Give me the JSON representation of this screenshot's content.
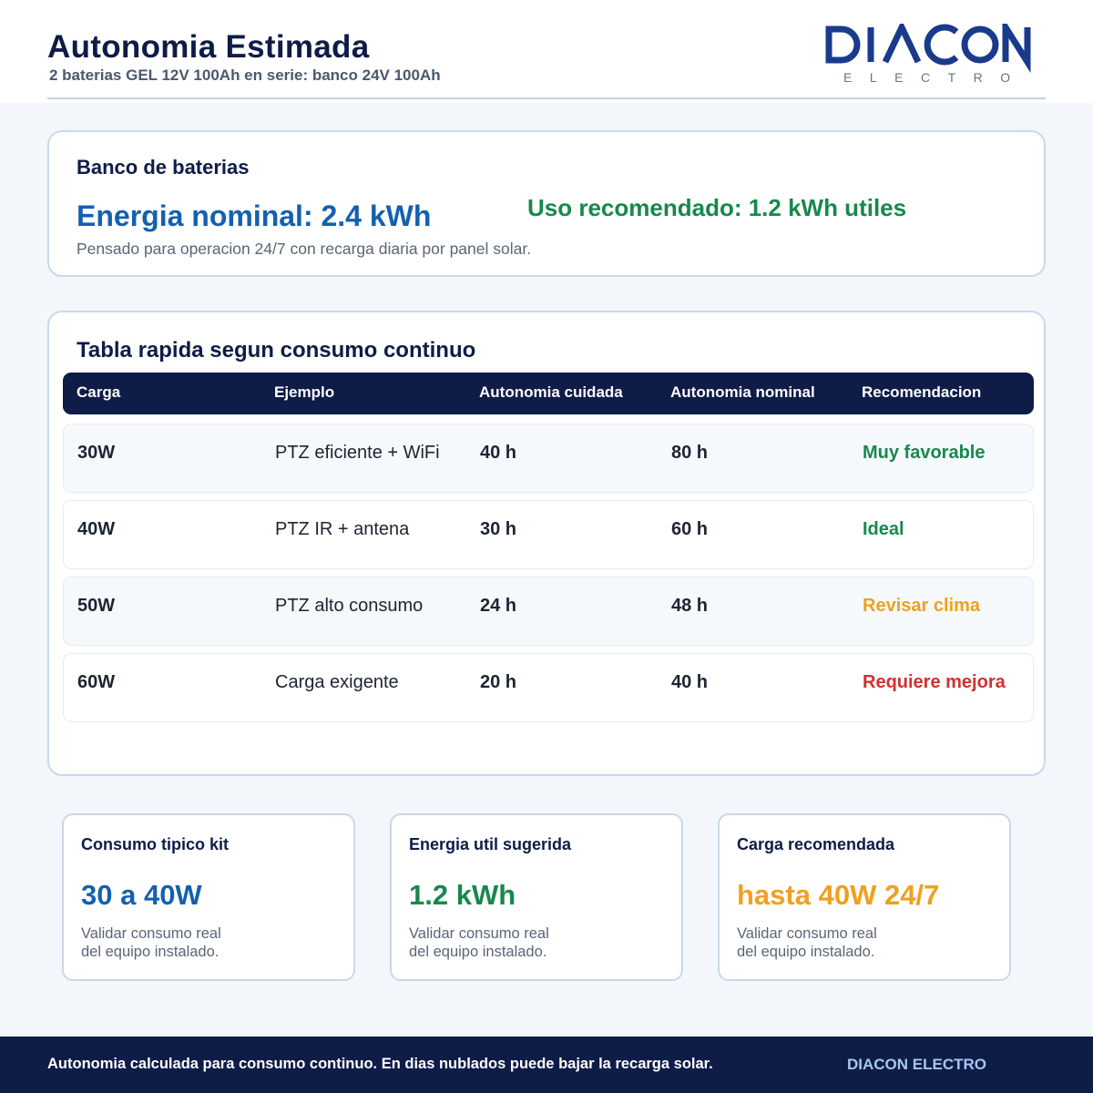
{
  "header": {
    "title": "Autonomia Estimada",
    "subtitle": "2 baterias GEL 12V 100Ah en serie: banco 24V 100Ah",
    "logo": {
      "name": "DIACON",
      "tagline": "ELECTRO",
      "icon": "diacon-logo"
    }
  },
  "bank": {
    "heading": "Banco de baterias",
    "nominal": "Energia nominal: 2.4 kWh",
    "recommended": "Uso recomendado: 1.2 kWh utiles",
    "note": "Pensado para operacion 24/7 con recarga diaria por panel solar."
  },
  "table": {
    "heading": "Tabla rapida segun consumo continuo",
    "columns": [
      "Carga",
      "Ejemplo",
      "Autonomia cuidada",
      "Autonomia nominal",
      "Recomendacion"
    ],
    "rows": [
      {
        "load": "30W",
        "example": "PTZ eficiente + WiFi",
        "careful": "40 h",
        "nominal": "80 h",
        "recommendation": "Muy favorable",
        "color": "#17884c"
      },
      {
        "load": "40W",
        "example": "PTZ IR + antena",
        "careful": "30 h",
        "nominal": "60 h",
        "recommendation": "Ideal",
        "color": "#17884c"
      },
      {
        "load": "50W",
        "example": "PTZ alto consumo",
        "careful": "24 h",
        "nominal": "48 h",
        "recommendation": "Revisar clima",
        "color": "#f0a020"
      },
      {
        "load": "60W",
        "example": "Carga exigente",
        "careful": "20 h",
        "nominal": "40 h",
        "recommendation": "Requiere mejora",
        "color": "#d32f2f"
      }
    ]
  },
  "kpis": [
    {
      "label": "Consumo tipico kit",
      "value": "30 a 40W",
      "note1": "Validar consumo real",
      "note2": "del equipo instalado.",
      "color": "#1460b0"
    },
    {
      "label": "Energia util sugerida",
      "value": "1.2 kWh",
      "note1": "Validar consumo real",
      "note2": "del equipo instalado.",
      "color": "#17884c"
    },
    {
      "label": "Carga recomendada",
      "value": "hasta 40W 24/7",
      "note1": "Validar consumo real",
      "note2": "del equipo instalado.",
      "color": "#f0a020"
    }
  ],
  "footer": {
    "note": "Autonomia calculada para consumo continuo. En dias nublados puede bajar la recarga solar.",
    "brand": "DIACON ELECTRO"
  }
}
